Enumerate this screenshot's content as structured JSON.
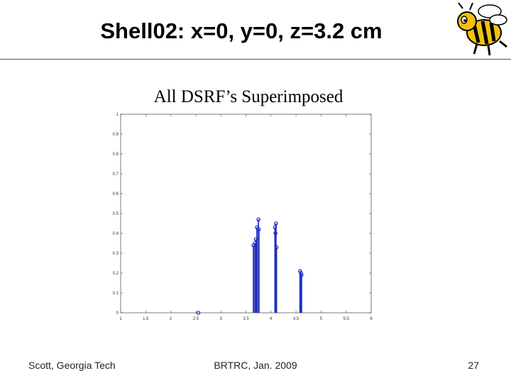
{
  "slide": {
    "title": "Shell02: x=0, y=0, z=3.2 cm",
    "subtitle": "All DSRF’s Superimposed"
  },
  "footer": {
    "left": "Scott, Georgia Tech",
    "center": "BRTRC, Jan. 2009",
    "page_number": "27"
  },
  "logo": {
    "icon": "yellow-jacket-mascot-icon"
  },
  "colors": {
    "stem": "#1f2fbf",
    "axis": "#444444",
    "text": "#000000"
  },
  "chart_data": {
    "type": "stem",
    "title": "",
    "xlabel": "",
    "ylabel": "",
    "xlim": [
      1,
      6
    ],
    "ylim": [
      0,
      1
    ],
    "xticks": [
      "1",
      "1.5",
      "2",
      "2.5",
      "3",
      "3.5",
      "4",
      "4.5",
      "5",
      "5.5",
      "6"
    ],
    "yticks": [
      "0",
      "0.1",
      "0.2",
      "0.3",
      "0.4",
      "0.5",
      "0.6",
      "0.7",
      "0.8",
      "0.9",
      "1"
    ],
    "grid": false,
    "series": [
      {
        "values": [
          [
            2.55,
            0.0
          ],
          [
            3.65,
            0.34
          ],
          [
            3.68,
            0.35
          ],
          [
            3.7,
            0.37
          ],
          [
            3.72,
            0.43
          ],
          [
            3.75,
            0.47
          ],
          [
            3.76,
            0.42
          ],
          [
            4.08,
            0.43
          ],
          [
            4.09,
            0.4
          ],
          [
            4.1,
            0.45
          ],
          [
            4.11,
            0.33
          ],
          [
            4.58,
            0.21
          ],
          [
            4.6,
            0.2
          ],
          [
            4.61,
            0.19
          ]
        ]
      }
    ]
  }
}
